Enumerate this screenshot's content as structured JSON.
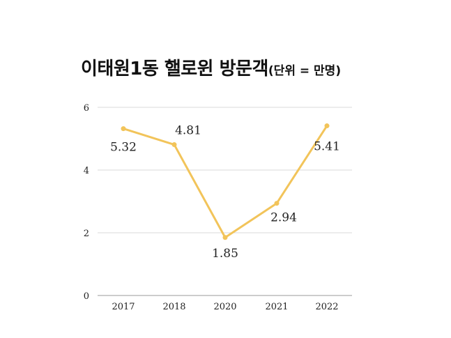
{
  "chart_data": {
    "type": "line",
    "title": "이태원1동 핼로윈 방문객",
    "subtitle": "(단위 = 만명)",
    "categories": [
      "2017",
      "2018",
      "2020",
      "2021",
      "2022"
    ],
    "series": [
      {
        "values": [
          5.32,
          4.81,
          1.85,
          2.94,
          5.41
        ],
        "labels": [
          "5.32",
          "4.81",
          "1.85",
          "2.94",
          "5.41"
        ]
      }
    ],
    "ylim": [
      0,
      6
    ],
    "yticks": [
      "0",
      "2",
      "4",
      "6"
    ],
    "grid": true,
    "color": "#f2c45a",
    "gridColor": "#d9d9d9"
  }
}
